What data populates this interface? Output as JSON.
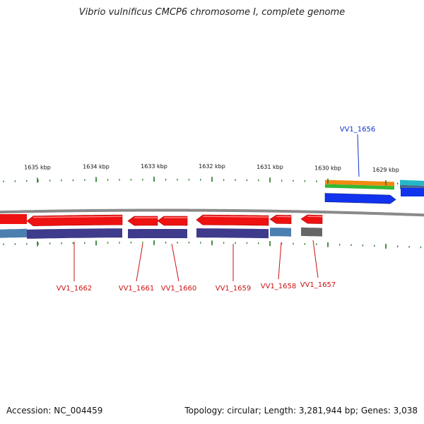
{
  "title": "Vibrio vulnificus CMCP6 chromosome I, complete genome",
  "accession_text": "Accession: NC_004459",
  "summary_text": "Topology: circular; Length: 3,281,944 bp; Genes: 3,038",
  "colors": {
    "backbone": "#8a8a8a",
    "tick": "#2a7a2a",
    "reverse_gene": "#ee1111",
    "forward_gene": "#1133ee",
    "forward_label": "#1133cc",
    "reverse_label": "#cc1111",
    "cog_purple": "#3e3a8c",
    "cog_steel": "#4a7fb0",
    "cog_gray": "#666666",
    "cog_orange": "#f08a10",
    "cog_green": "#33b833",
    "cog_cyan": "#22b8c8"
  },
  "ticks": [
    {
      "label": "1635 kbp"
    },
    {
      "label": "1634 kbp"
    },
    {
      "label": "1633 kbp"
    },
    {
      "label": "1632 kbp"
    },
    {
      "label": "1631 kbp"
    },
    {
      "label": "1630 kbp"
    },
    {
      "label": "1629 kbp"
    }
  ],
  "genes": [
    {
      "label": "VV1_1662",
      "strand": "reverse"
    },
    {
      "label": "VV1_1661",
      "strand": "reverse"
    },
    {
      "label": "VV1_1660",
      "strand": "reverse"
    },
    {
      "label": "VV1_1659",
      "strand": "reverse"
    },
    {
      "label": "VV1_1658",
      "strand": "reverse"
    },
    {
      "label": "VV1_1657",
      "strand": "reverse"
    },
    {
      "label": "VV1_1656",
      "strand": "forward"
    }
  ]
}
